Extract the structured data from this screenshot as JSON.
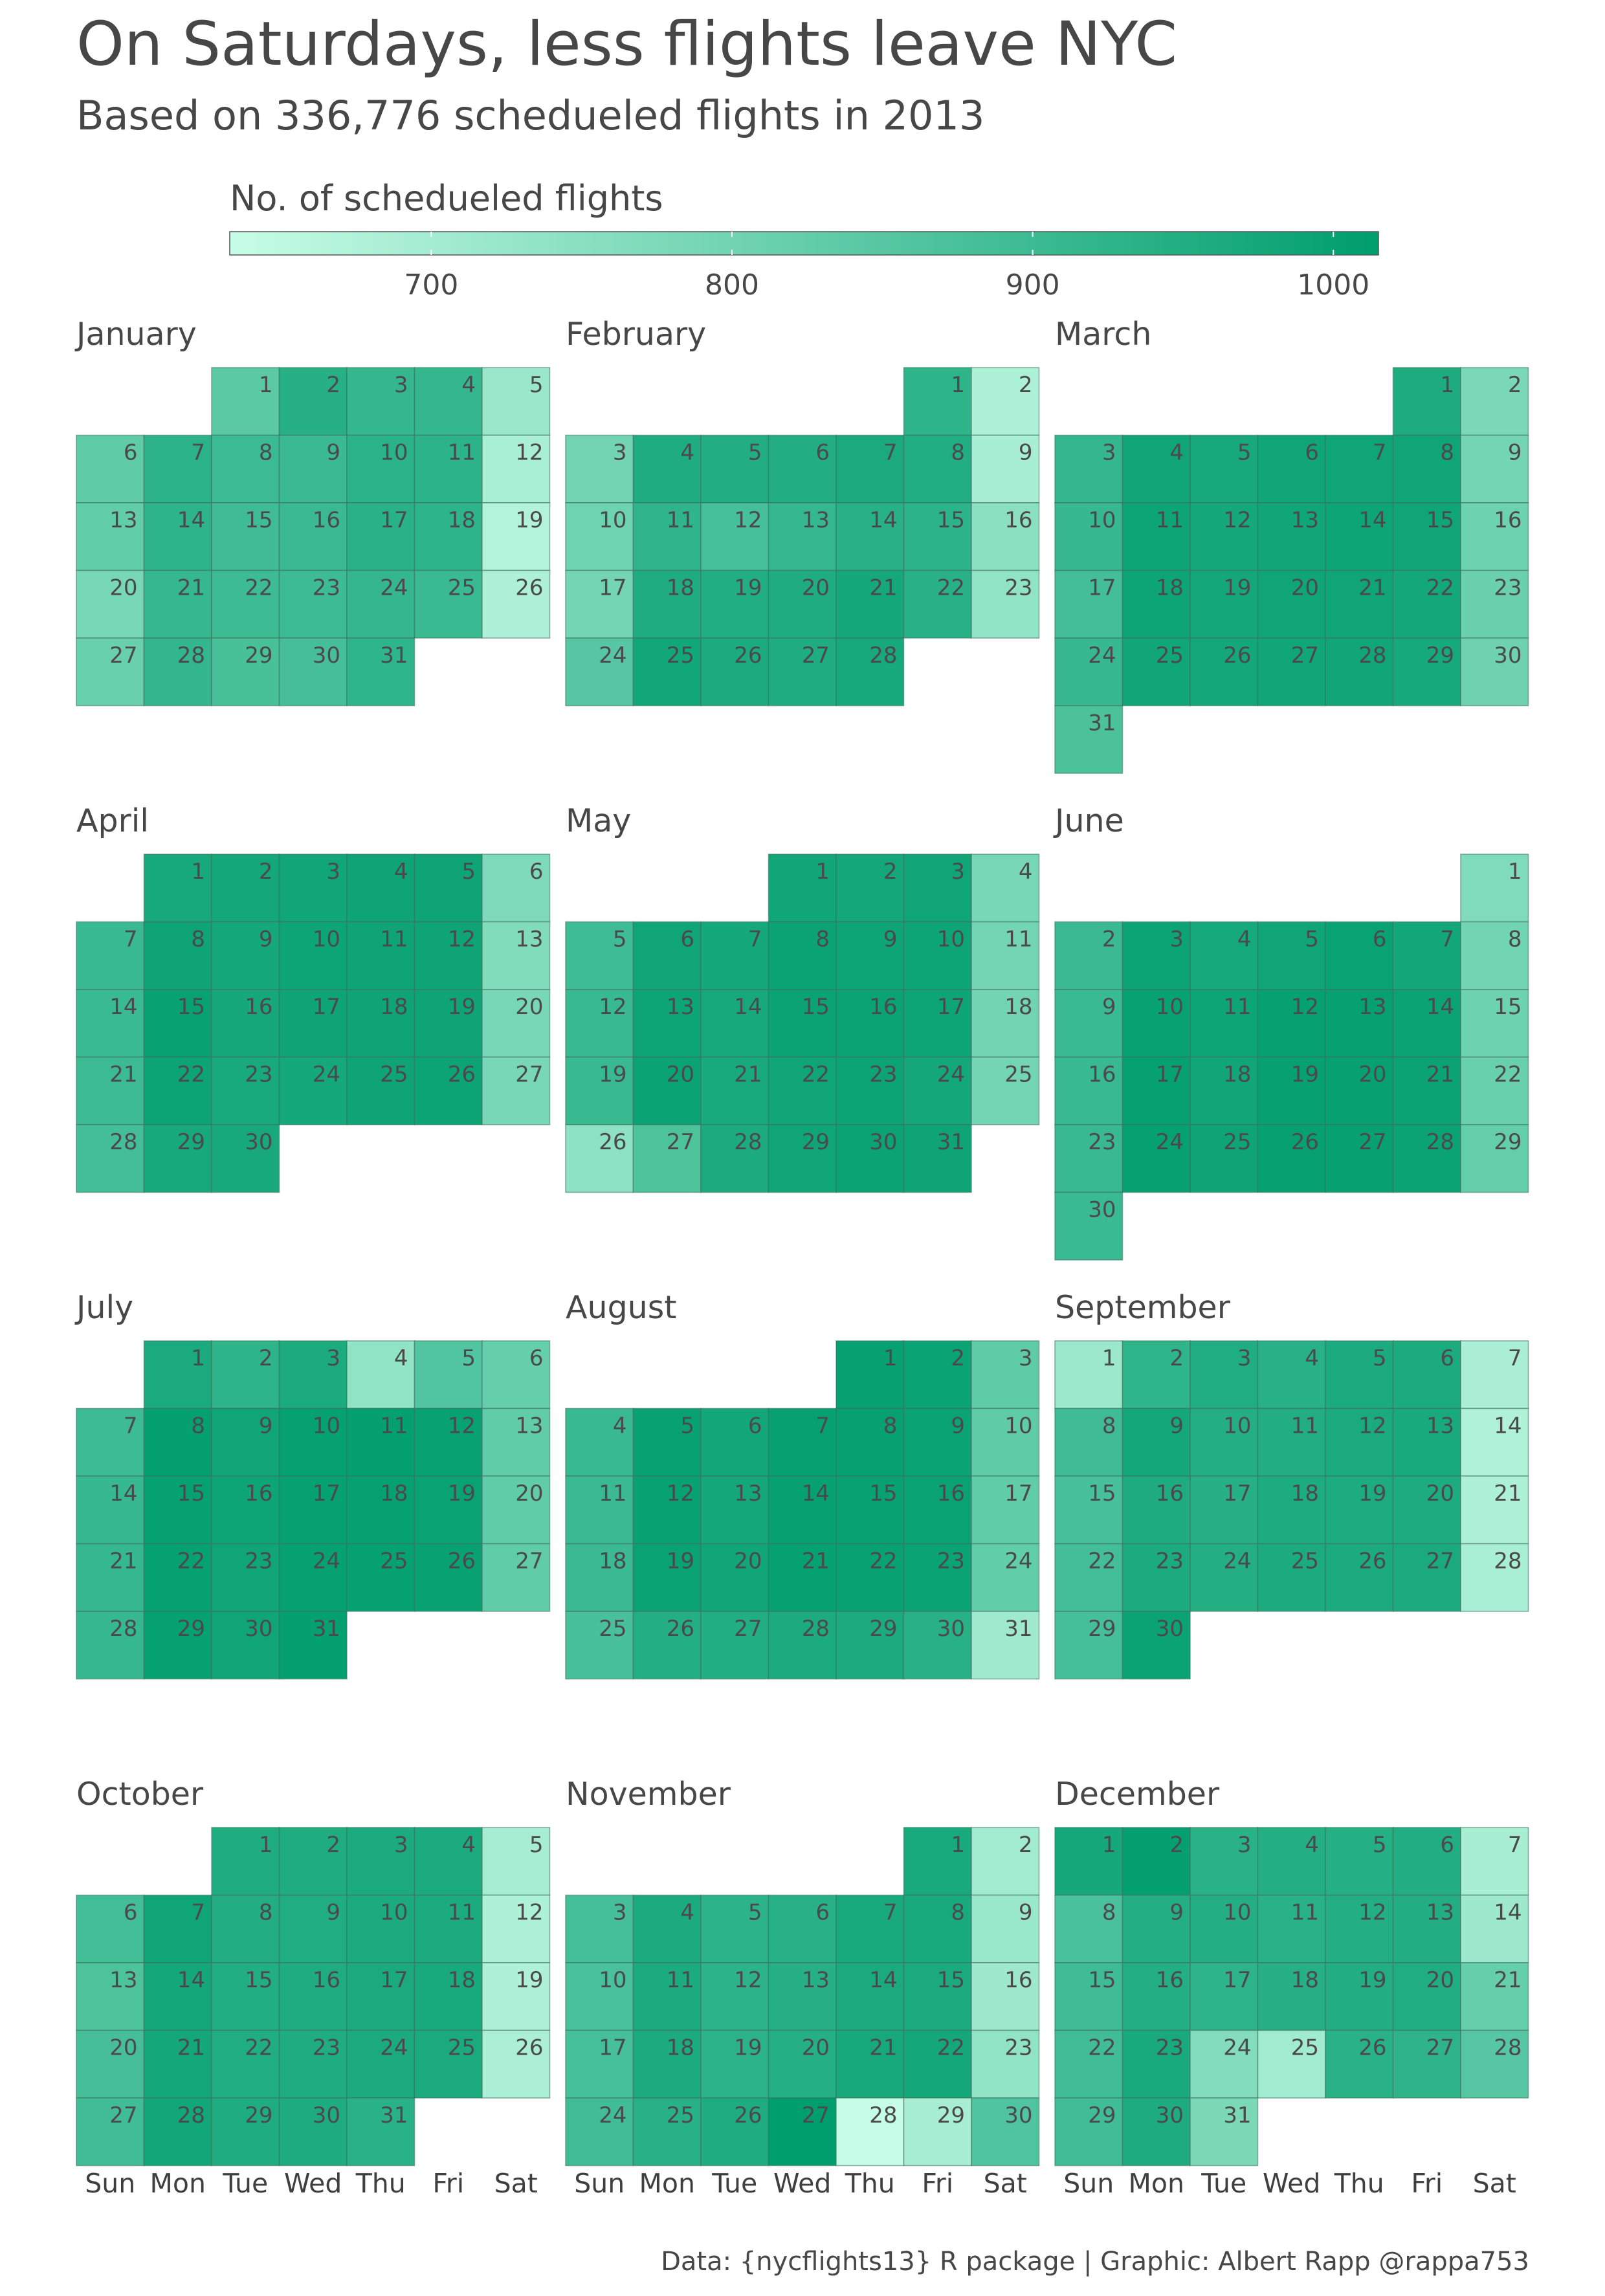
{
  "title": "On Saturdays, less flights leave NYC",
  "subtitle": "Based on 336,776 schedueled flights in 2013",
  "caption": "Data: {nycflights13} R package | Graphic: Albert Rapp @rappa753",
  "legend": {
    "title": "No. of schedueled flights",
    "min": 633,
    "max": 1015,
    "ticks": [
      700,
      800,
      900,
      1000
    ],
    "low_color": "#c7fde7",
    "high_color": "#009e6d"
  },
  "weekday_labels": [
    "Sun",
    "Mon",
    "Tue",
    "Wed",
    "Thu",
    "Fri",
    "Sat"
  ],
  "chart_data": {
    "type": "heatmap",
    "title": "On Saturdays, less flights leave NYC",
    "subtitle": "Based on 336,776 schedueled flights in 2013",
    "value_label": "No. of schedueled flights",
    "year": 2013,
    "months": [
      {
        "name": "January",
        "first_weekday": 2,
        "values": [
          842,
          943,
          914,
          915,
          720,
          832,
          933,
          899,
          902,
          932,
          930,
          690,
          828,
          928,
          894,
          901,
          935,
          928,
          674,
          786,
          912,
          898,
          897,
          915,
          904,
          680,
          814,
          918,
          876,
          881,
          924
        ]
      },
      {
        "name": "February",
        "first_weekday": 5,
        "values": [
          926,
          682,
          796,
          957,
          949,
          950,
          966,
          952,
          694,
          803,
          923,
          880,
          912,
          938,
          930,
          751,
          793,
          955,
          952,
          957,
          974,
          938,
          738,
          849,
          980,
          964,
          957,
          971
        ]
      },
      {
        "name": "March",
        "first_weekday": 5,
        "values": [
          958,
          780,
          915,
          987,
          970,
          985,
          987,
          987,
          793,
          910,
          988,
          974,
          984,
          988,
          986,
          807,
          887,
          988,
          976,
          987,
          987,
          976,
          812,
          909,
          984,
          978,
          983,
          983,
          972,
          804,
          870
        ]
      },
      {
        "name": "April",
        "first_weekday": 1,
        "values": [
          971,
          978,
          982,
          989,
          989,
          772,
          905,
          989,
          975,
          988,
          989,
          989,
          767,
          904,
          999,
          973,
          989,
          989,
          989,
          785,
          899,
          990,
          969,
          974,
          989,
          990,
          784,
          887,
          970,
          970
        ]
      },
      {
        "name": "May",
        "first_weekday": 3,
        "values": [
          983,
          978,
          986,
          787,
          896,
          987,
          975,
          994,
          988,
          988,
          793,
          905,
          988,
          970,
          993,
          993,
          988,
          796,
          906,
          995,
          967,
          986,
          990,
          977,
          795,
          744,
          868,
          961,
          987,
          993,
          989
        ]
      },
      {
        "name": "June",
        "first_weekday": 6,
        "values": [
          769,
          901,
          992,
          972,
          987,
          998,
          980,
          799,
          903,
          1000,
          988,
          1002,
          1002,
          994,
          807,
          907,
          1003,
          984,
          1001,
          1002,
          994,
          814,
          908,
          1004,
          989,
          1002,
          1001,
          994,
          823,
          903
        ]
      },
      {
        "name": "July",
        "first_weekday": 1,
        "values": [
          966,
          926,
          964,
          737,
          860,
          822,
          898,
          1005,
          986,
          1004,
          1005,
          999,
          830,
          910,
          1004,
          988,
          1004,
          1004,
          998,
          830,
          911,
          1004,
          986,
          1003,
          1004,
          999,
          830,
          912,
          1003,
          986,
          1005
        ]
      },
      {
        "name": "August",
        "first_weekday": 4,
        "values": [
          1001,
          995,
          833,
          905,
          999,
          979,
          1002,
          1002,
          995,
          833,
          901,
          1000,
          978,
          1001,
          1000,
          998,
          829,
          901,
          997,
          983,
          1003,
          999,
          995,
          827,
          877,
          946,
          952,
          961,
          963,
          940,
          710
        ]
      },
      {
        "name": "September",
        "first_weekday": 0,
        "values": [
          718,
          924,
          953,
          938,
          962,
          964,
          689,
          894,
          978,
          947,
          950,
          966,
          968,
          679,
          877,
          958,
          942,
          959,
          960,
          960,
          682,
          887,
          961,
          948,
          961,
          962,
          966,
          690,
          884,
          993
        ]
      },
      {
        "name": "October",
        "first_weekday": 2,
        "values": [
          956,
          956,
          962,
          963,
          697,
          888,
          986,
          950,
          954,
          962,
          964,
          683,
          868,
          978,
          951,
          955,
          965,
          968,
          680,
          881,
          978,
          954,
          956,
          965,
          966,
          686,
          891,
          980,
          955,
          958,
          935
        ]
      },
      {
        "name": "November",
        "first_weekday": 5,
        "values": [
          969,
          706,
          884,
          963,
          931,
          939,
          967,
          969,
          719,
          874,
          964,
          931,
          943,
          966,
          965,
          712,
          880,
          963,
          933,
          944,
          970,
          977,
          739,
          891,
          937,
          956,
          1015,
          634,
          692,
          861
        ]
      },
      {
        "name": "December",
        "first_weekday": 0,
        "values": [
          973,
          1005,
          934,
          948,
          944,
          950,
          695,
          874,
          946,
          946,
          936,
          947,
          950,
          712,
          895,
          947,
          926,
          941,
          950,
          954,
          821,
          892,
          968,
          765,
          706,
          934,
          925,
          849,
          890,
          958,
          779
        ]
      }
    ]
  }
}
